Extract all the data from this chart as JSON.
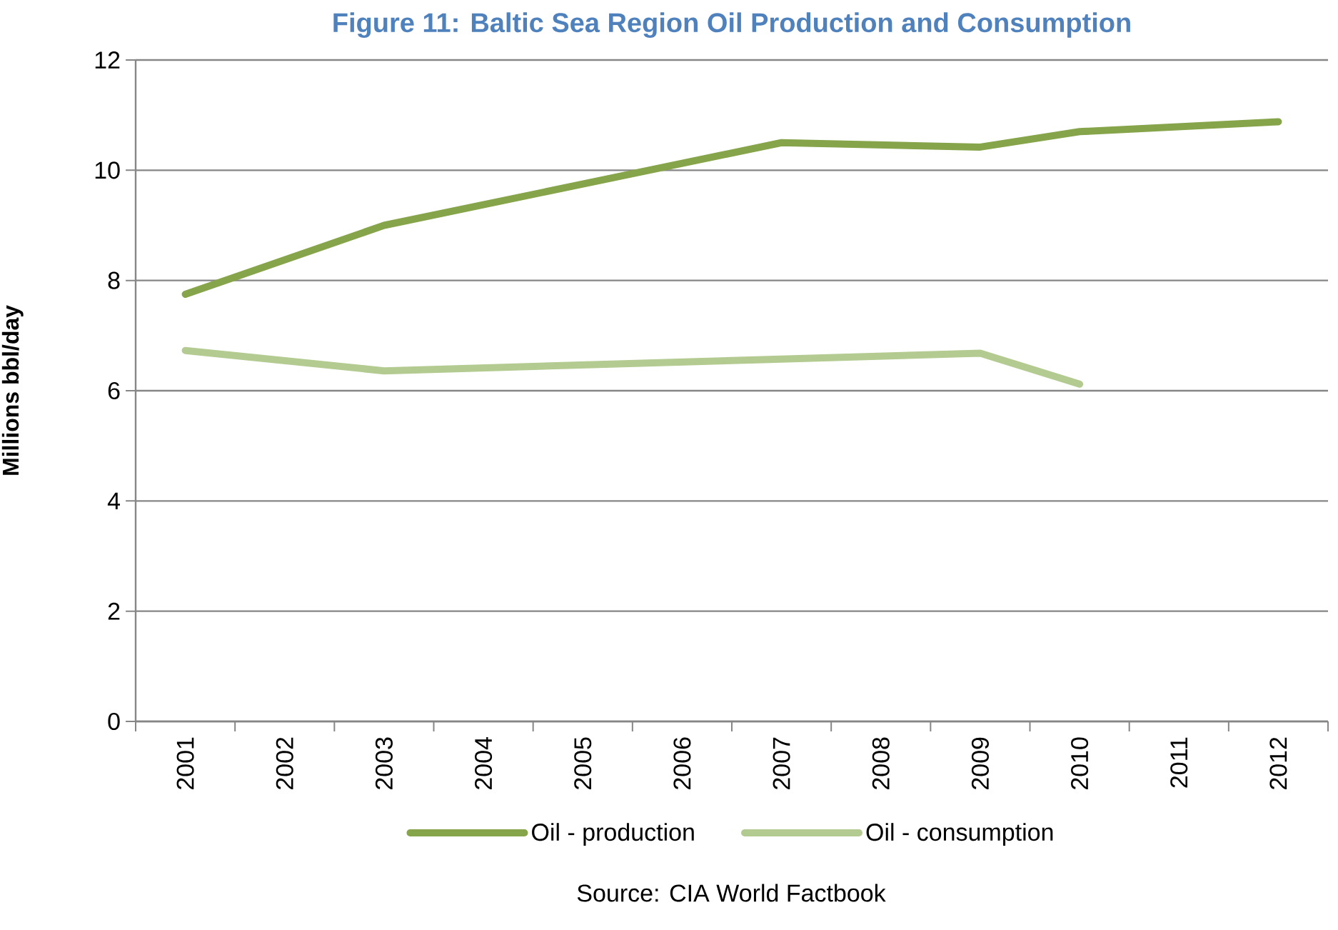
{
  "chart_data": {
    "type": "line",
    "title": "Figure 11: Baltic Sea Region Oil Production and Consumption",
    "ylabel": "Millions bbl/day",
    "annotations": [
      "Source: CIA World Factbook"
    ],
    "xlim": [
      2000.5,
      2012.5
    ],
    "xticks": [
      2001,
      2002,
      2003,
      2004,
      2005,
      2006,
      2007,
      2008,
      2009,
      2010,
      2011,
      2012
    ],
    "ylim": [
      0,
      12
    ],
    "yticks": [
      0,
      2,
      4,
      6,
      8,
      10,
      12
    ],
    "grid": "y",
    "legend": "bottom",
    "marker": "none",
    "line_style": "solid",
    "series": [
      {
        "name": "Oil - production",
        "color": "#86A44A",
        "x": [
          2001,
          2003,
          2007,
          2009,
          2010,
          2012
        ],
        "values": [
          7.75,
          9.0,
          10.5,
          10.42,
          10.7,
          10.88
        ]
      },
      {
        "name": "Oil - consumption",
        "color": "#B3CB91",
        "x": [
          2001,
          2003,
          2009,
          2010
        ],
        "values": [
          6.73,
          6.36,
          6.68,
          6.12
        ]
      }
    ]
  }
}
